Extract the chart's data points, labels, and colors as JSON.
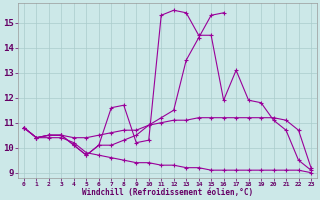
{
  "xlabel": "Windchill (Refroidissement éolien,°C)",
  "line_color": "#990099",
  "background_color": "#cce8e8",
  "grid_color": "#aacccc",
  "xlim": [
    -0.5,
    23.5
  ],
  "ylim": [
    8.8,
    15.8
  ],
  "yticks": [
    9,
    10,
    11,
    12,
    13,
    14,
    15
  ],
  "xticks": [
    0,
    1,
    2,
    3,
    4,
    5,
    6,
    7,
    8,
    9,
    10,
    11,
    12,
    13,
    14,
    15,
    16,
    17,
    18,
    19,
    20,
    21,
    22,
    23
  ],
  "lines": [
    [
      10.8,
      10.4,
      10.5,
      10.5,
      10.1,
      9.7,
      10.1,
      11.6,
      11.7,
      10.2,
      10.3,
      15.3,
      15.5,
      15.4,
      14.5,
      14.5,
      11.9,
      13.1,
      11.9,
      11.8,
      11.1,
      10.7,
      9.5,
      9.1
    ],
    [
      10.8,
      10.4,
      10.5,
      10.5,
      10.1,
      9.7,
      10.1,
      10.1,
      10.3,
      10.5,
      10.9,
      11.2,
      11.5,
      13.5,
      14.4,
      15.3,
      15.4,
      null,
      null,
      null,
      null,
      null,
      null,
      null
    ],
    [
      10.8,
      10.4,
      10.5,
      10.5,
      10.4,
      10.4,
      10.5,
      10.6,
      10.7,
      10.7,
      10.9,
      11.0,
      11.1,
      11.1,
      11.2,
      11.2,
      11.2,
      11.2,
      11.2,
      11.2,
      11.2,
      11.1,
      10.7,
      9.2
    ],
    [
      10.8,
      10.4,
      10.4,
      10.4,
      10.2,
      9.8,
      9.7,
      9.6,
      9.5,
      9.4,
      9.4,
      9.3,
      9.3,
      9.2,
      9.2,
      9.1,
      9.1,
      9.1,
      9.1,
      9.1,
      9.1,
      9.1,
      9.1,
      9.0
    ]
  ]
}
